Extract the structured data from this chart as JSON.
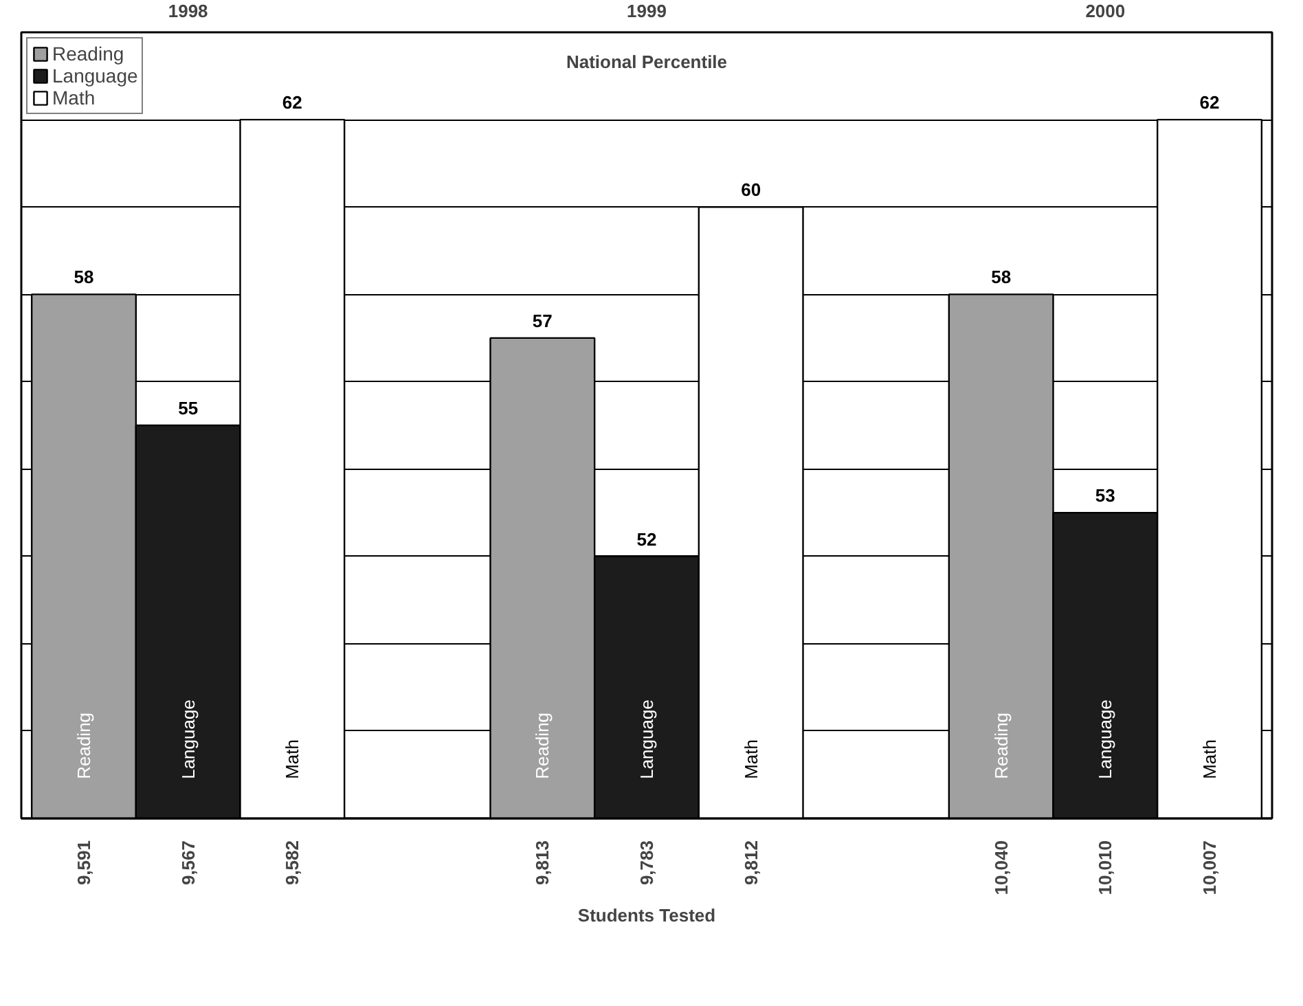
{
  "chart_data": {
    "type": "bar",
    "title": "National Percentile",
    "xlabel": "Students Tested",
    "categories": [
      "1998",
      "1999",
      "2000"
    ],
    "series": [
      {
        "name": "Reading",
        "color": "#a0a0a0",
        "values": [
          58,
          57,
          58
        ]
      },
      {
        "name": "Language",
        "color": "#1c1c1c",
        "values": [
          55,
          52,
          53
        ]
      },
      {
        "name": "Math",
        "color": "#ffffff",
        "values": [
          62,
          60,
          62
        ]
      }
    ],
    "ylim": [
      46,
      64
    ],
    "yticks": [
      {
        "value": 48,
        "label": null
      },
      {
        "value": 50,
        "label": null
      },
      {
        "value": 52,
        "label": null
      },
      {
        "value": 54,
        "label": null
      },
      {
        "value": 56,
        "label": null
      },
      {
        "value": 58,
        "label": null
      },
      {
        "value": 60,
        "label": null
      },
      {
        "value": 62,
        "label": null
      }
    ],
    "tick_labels": "x",
    "grid": "y",
    "legend": "top left",
    "data_labels": true,
    "annotations": [
      "9,591",
      "9,567",
      "9,582",
      "9,813",
      "9,783",
      "9,812",
      "10,040",
      "10,010",
      "10,007"
    ]
  }
}
